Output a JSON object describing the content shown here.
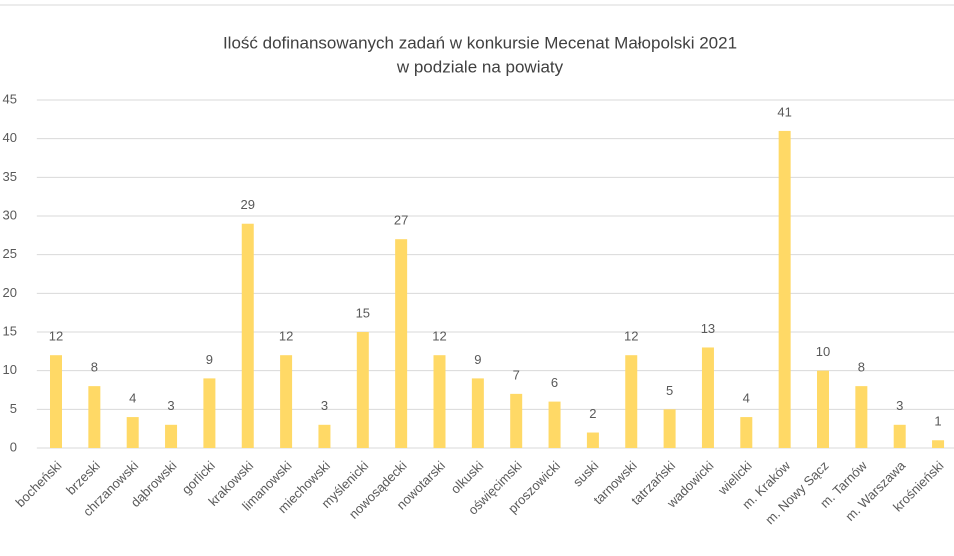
{
  "chart_data": {
    "type": "bar",
    "title": [
      "Ilość dofinansowanych zadań w konkursie Mecenat Małopolski 2021",
      "w podziale na powiaty"
    ],
    "categories": [
      "bocheński",
      "brzeski",
      "chrzanowski",
      "dąbrowski",
      "gorlicki",
      "krakowski",
      "limanowski",
      "miechowski",
      "myślenicki",
      "nowosądecki",
      "nowotarski",
      "olkuski",
      "oświęcimski",
      "proszowicki",
      "suski",
      "tarnowski",
      "tatrzański",
      "wadowicki",
      "wielicki",
      "m. Kraków",
      "m. Nowy Sącz",
      "m. Tarnów",
      "m. Warszawa",
      "krośnieński"
    ],
    "values": [
      12,
      8,
      4,
      3,
      9,
      29,
      12,
      3,
      15,
      27,
      12,
      9,
      7,
      6,
      2,
      12,
      5,
      13,
      4,
      41,
      10,
      8,
      3,
      1
    ],
    "color": "#ffd966",
    "ylim": [
      0,
      45
    ],
    "yticks": [
      0,
      5,
      10,
      15,
      20,
      25,
      30,
      35,
      40,
      45
    ],
    "grid": true
  }
}
